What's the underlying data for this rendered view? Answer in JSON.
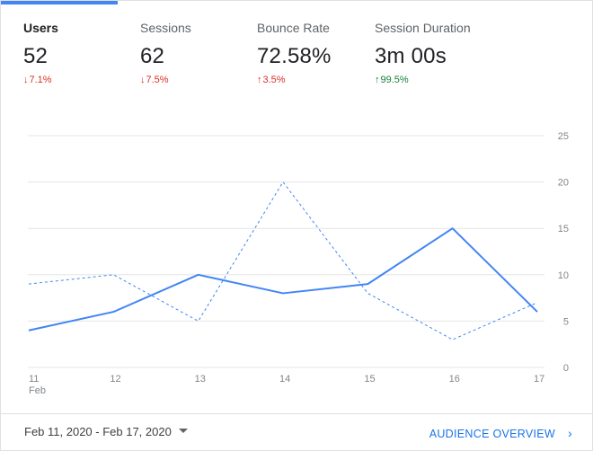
{
  "metrics": [
    {
      "label": "Users",
      "value": "52",
      "change": "7.1%",
      "direction": "down",
      "sentiment": "bad",
      "active": true
    },
    {
      "label": "Sessions",
      "value": "62",
      "change": "7.5%",
      "direction": "down",
      "sentiment": "bad",
      "active": false
    },
    {
      "label": "Bounce Rate",
      "value": "72.58%",
      "change": "3.5%",
      "direction": "up",
      "sentiment": "bad",
      "active": false
    },
    {
      "label": "Session Duration",
      "value": "3m 00s",
      "change": "99.5%",
      "direction": "up",
      "sentiment": "good",
      "active": false
    }
  ],
  "icons": {
    "down_arrow": "↓",
    "up_arrow": "↑",
    "caret": "dropdown-caret-icon",
    "chevron": "›"
  },
  "colors": {
    "accent": "#4285f4",
    "negative": "#d93025",
    "positive": "#188038",
    "link": "#1a73e8"
  },
  "chart_data": {
    "type": "line",
    "x": [
      "11",
      "12",
      "13",
      "14",
      "15",
      "16",
      "17"
    ],
    "x_sublabel": "Feb",
    "ylim": [
      0,
      25
    ],
    "yticks": [
      0,
      5,
      10,
      15,
      20,
      25
    ],
    "series": [
      {
        "style": "solid",
        "values": [
          4,
          6,
          10,
          8,
          9,
          15,
          6
        ]
      },
      {
        "style": "dashed",
        "values": [
          9,
          10,
          5,
          20,
          8,
          3,
          7
        ]
      }
    ],
    "grid": true
  },
  "footer": {
    "date_range": "Feb 11, 2020 - Feb 17, 2020",
    "audience_link": "AUDIENCE OVERVIEW"
  }
}
